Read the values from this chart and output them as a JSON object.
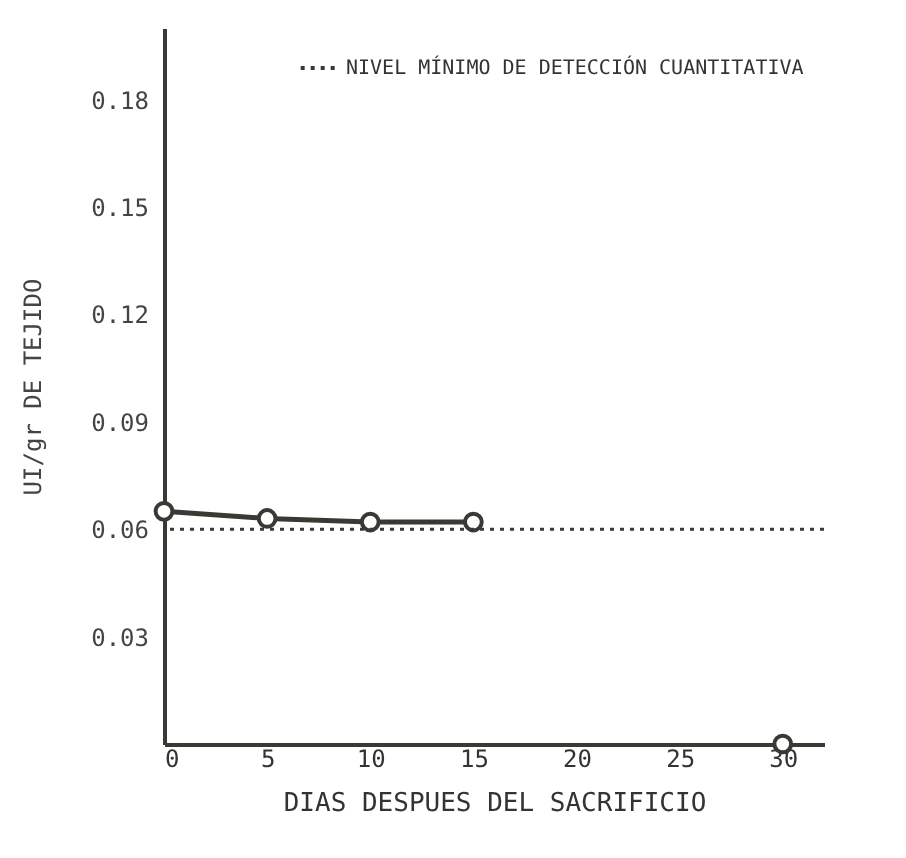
{
  "chart_data": {
    "type": "line",
    "xlabel": "DIAS DESPUES DEL SACRIFICIO",
    "ylabel": "UI/gr DE TEJIDO",
    "x": [
      0,
      5,
      10,
      15,
      20,
      25,
      30
    ],
    "series": [
      {
        "color": "#3a3a35",
        "values": [
          0.065,
          0.063,
          0.062,
          0.062,
          null,
          null,
          0
        ]
      }
    ],
    "marker": "circle",
    "line_style": "solid",
    "xlim": [
      0,
      32
    ],
    "xticks": [
      0,
      5,
      10,
      15,
      20,
      25,
      30
    ],
    "ylim": [
      0,
      0.2
    ],
    "yticks": [
      0.03,
      0.06,
      0.09,
      0.12,
      0.15,
      0.18
    ],
    "ref_lines": [
      {
        "axis": "y",
        "value": 0.06,
        "label": "NIVEL MÍNIMO DE DETECCIÓN CUANTITATIVA",
        "color": "#3a3a35",
        "line_style": "dotted"
      }
    ],
    "legend": "top right",
    "grid": false
  }
}
